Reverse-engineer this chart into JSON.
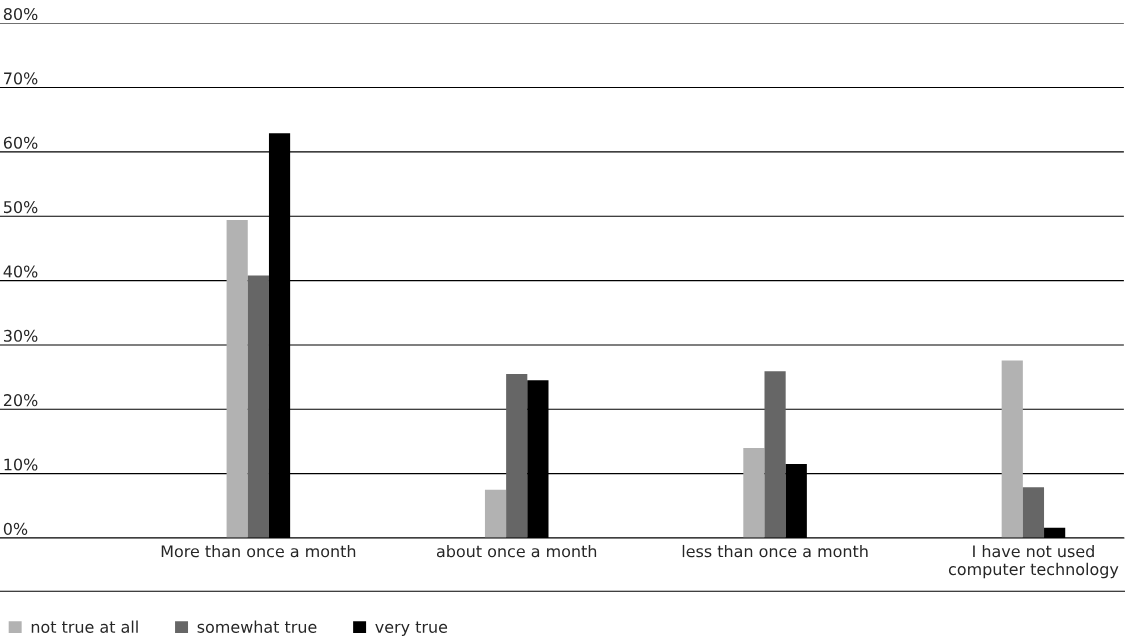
{
  "chart_data": {
    "type": "bar",
    "categories": [
      "More than once a month",
      "about once a month",
      "less than once a month",
      "I have not used\ncomputer technology"
    ],
    "series": [
      {
        "name": "not true at all",
        "color": "#b2b2b2",
        "values": [
          49.4,
          7.5,
          14.0,
          27.6
        ]
      },
      {
        "name": "somewhat true",
        "color": "#666666",
        "values": [
          40.8,
          25.5,
          25.9,
          7.9
        ]
      },
      {
        "name": "very true",
        "color": "#000000",
        "values": [
          62.9,
          24.5,
          11.5,
          1.6
        ]
      }
    ],
    "ylim": [
      0,
      80
    ],
    "yticks": [
      {
        "value": 0,
        "label": "0%"
      },
      {
        "value": 10,
        "label": "10%"
      },
      {
        "value": 20,
        "label": "20%"
      },
      {
        "value": 30,
        "label": "30%"
      },
      {
        "value": 40,
        "label": "40%"
      },
      {
        "value": 50,
        "label": "50%"
      },
      {
        "value": 60,
        "label": "60%"
      },
      {
        "value": 70,
        "label": "70%"
      },
      {
        "value": 80,
        "label": "80%"
      }
    ],
    "grid": "y",
    "legend": "bottom left"
  }
}
